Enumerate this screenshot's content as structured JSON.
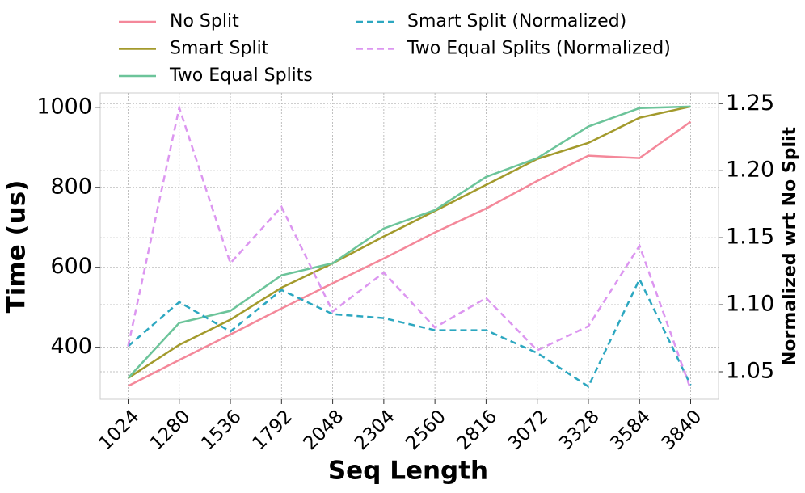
{
  "chart_data": {
    "type": "line",
    "x_label": "Seq Length",
    "y_label": "Time (us)",
    "y2_label": "Normalized wrt No Split",
    "categories": [
      "1024",
      "1280",
      "1536",
      "1792",
      "2048",
      "2304",
      "2560",
      "2816",
      "3072",
      "3328",
      "3584",
      "3840"
    ],
    "series": [
      {
        "name": "No Split",
        "color": "#f4889a",
        "dash": false,
        "values": [
          303,
          368,
          432,
          497,
          560,
          622,
          687,
          747,
          816,
          879,
          873,
          964
        ]
      },
      {
        "name": "Smart Split",
        "color": "#a39a2c",
        "dash": false,
        "values": [
          323,
          406,
          469,
          549,
          610,
          677,
          741,
          806,
          871,
          911,
          974,
          1002
        ]
      },
      {
        "name": "Two Equal Splits",
        "color": "#6cc49a",
        "dash": false,
        "values": [
          323,
          461,
          491,
          580,
          610,
          697,
          743,
          826,
          873,
          952,
          998,
          1002
        ]
      },
      {
        "name": "Smart Split (Normalized)",
        "color": "#2ca7c0",
        "dash": true,
        "axis": "y2",
        "values": [
          1.069,
          1.102,
          1.08,
          1.111,
          1.093,
          1.09,
          1.081,
          1.081,
          1.064,
          1.039,
          1.119,
          1.04
        ]
      },
      {
        "name": "Two Equal Splits (Normalized)",
        "color": "#dc96f0",
        "dash": true,
        "axis": "y2",
        "values": [
          1.069,
          1.247,
          1.131,
          1.173,
          1.095,
          1.124,
          1.083,
          1.105,
          1.066,
          1.084,
          1.144,
          1.037
        ]
      }
    ],
    "ylim": [
      270,
      1036
    ],
    "yticks": [
      400,
      600,
      800,
      1000
    ],
    "y2lim": [
      1.0295,
      1.258
    ],
    "y2ticks": [
      1.05,
      {
        "value": 1.1,
        "label": "1.10"
      },
      1.15,
      {
        "value": 1.2,
        "label": "1.20"
      },
      1.25
    ],
    "grid": true,
    "legend": "top"
  }
}
